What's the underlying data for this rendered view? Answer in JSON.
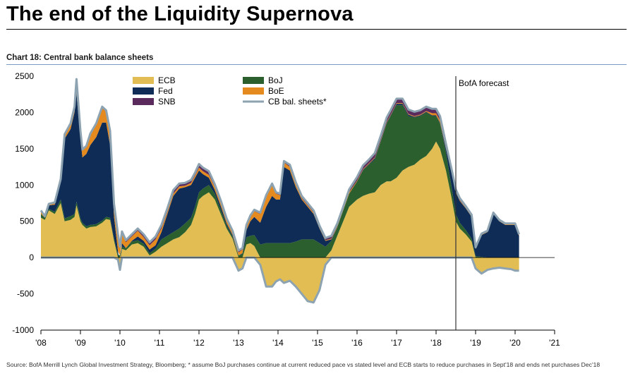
{
  "page": {
    "headline": "The end of the Liquidity Supernova",
    "subtitle": "Chart 18: Central bank balance sheets",
    "source": "Source: BofA Merrill Lynch Global Investment Strategy, Bloomberg; * assume BoJ purchases continue at current reduced pace vs stated level and ECB starts to reduce purchases in Sept'18 and ends net purchases Dec'18"
  },
  "chart_data": {
    "type": "area",
    "title": "Chart 18: Central bank balance sheets",
    "xlabel": "",
    "ylabel": "",
    "xlim": [
      2008.0,
      2021.0
    ],
    "ylim": [
      -1000,
      2500
    ],
    "y_ticks": [
      -1000,
      -500,
      0,
      500,
      1000,
      1500,
      2000,
      2500
    ],
    "x_ticks": [
      {
        "value": 2008,
        "label": "'08"
      },
      {
        "value": 2009,
        "label": "'09"
      },
      {
        "value": 2010,
        "label": "'10"
      },
      {
        "value": 2011,
        "label": "'11"
      },
      {
        "value": 2012,
        "label": "'12"
      },
      {
        "value": 2013,
        "label": "'13"
      },
      {
        "value": 2014,
        "label": "'14"
      },
      {
        "value": 2015,
        "label": "'15"
      },
      {
        "value": 2016,
        "label": "'16"
      },
      {
        "value": 2017,
        "label": "'17"
      },
      {
        "value": 2018,
        "label": "'18"
      },
      {
        "value": 2019,
        "label": "'19"
      },
      {
        "value": 2020,
        "label": "'20"
      },
      {
        "value": 2021,
        "label": "'21"
      }
    ],
    "grid": false,
    "legend_position": "top-left",
    "stacked": true,
    "x": [
      2008.0,
      2008.1,
      2008.2,
      2008.35,
      2008.5,
      2008.6,
      2008.75,
      2008.85,
      2008.9,
      2009.0,
      2009.05,
      2009.15,
      2009.25,
      2009.4,
      2009.55,
      2009.65,
      2009.75,
      2009.85,
      2009.95,
      2010.0,
      2010.05,
      2010.15,
      2010.3,
      2010.45,
      2010.6,
      2010.75,
      2010.9,
      2011.05,
      2011.2,
      2011.35,
      2011.5,
      2011.65,
      2011.8,
      2011.9,
      2012.0,
      2012.1,
      2012.25,
      2012.4,
      2012.55,
      2012.7,
      2012.85,
      2013.0,
      2013.1,
      2013.2,
      2013.3,
      2013.4,
      2013.55,
      2013.7,
      2013.85,
      2013.95,
      2014.05,
      2014.15,
      2014.3,
      2014.45,
      2014.6,
      2014.75,
      2014.9,
      2015.05,
      2015.2,
      2015.35,
      2015.5,
      2015.65,
      2015.8,
      2016.0,
      2016.15,
      2016.3,
      2016.45,
      2016.6,
      2016.75,
      2016.85,
      2017.0,
      2017.15,
      2017.3,
      2017.45,
      2017.6,
      2017.75,
      2017.9,
      2018.0,
      2018.1,
      2018.25,
      2018.4,
      2018.5,
      2018.6,
      2018.75,
      2018.9,
      2019.0,
      2019.15,
      2019.3,
      2019.45,
      2019.6,
      2019.75,
      2019.9,
      2020.0,
      2020.1
    ],
    "series": [
      {
        "name": "ECB",
        "color": "#e2bd53",
        "values": [
          550,
          520,
          650,
          600,
          750,
          500,
          520,
          560,
          720,
          500,
          450,
          400,
          420,
          430,
          480,
          530,
          520,
          230,
          -30,
          -150,
          120,
          100,
          180,
          200,
          150,
          30,
          80,
          150,
          200,
          250,
          280,
          350,
          450,
          600,
          800,
          850,
          900,
          800,
          600,
          400,
          260,
          -180,
          -150,
          180,
          200,
          160,
          -100,
          -400,
          -400,
          -330,
          -300,
          -350,
          -320,
          -400,
          -500,
          -600,
          -620,
          -450,
          -100,
          100,
          300,
          500,
          700,
          800,
          850,
          880,
          900,
          1000,
          1050,
          1050,
          1100,
          1200,
          1250,
          1280,
          1350,
          1400,
          1500,
          1600,
          1500,
          1200,
          800,
          500,
          400,
          320,
          220,
          -150,
          -220,
          -170,
          -150,
          -140,
          -150,
          -160,
          -180,
          -180
        ]
      },
      {
        "name": "BoJ",
        "color": "#2c5f2e",
        "values": [
          50,
          30,
          20,
          30,
          50,
          40,
          50,
          40,
          50,
          40,
          30,
          30,
          30,
          30,
          30,
          30,
          30,
          30,
          40,
          30,
          30,
          30,
          40,
          40,
          40,
          30,
          40,
          100,
          100,
          100,
          120,
          120,
          100,
          100,
          100,
          100,
          100,
          80,
          60,
          40,
          30,
          30,
          50,
          100,
          100,
          150,
          180,
          200,
          200,
          200,
          200,
          200,
          200,
          220,
          250,
          250,
          250,
          200,
          150,
          130,
          120,
          150,
          180,
          250,
          350,
          400,
          450,
          600,
          800,
          900,
          1000,
          900,
          700,
          650,
          600,
          600,
          450,
          350,
          350,
          250,
          150,
          100,
          80,
          60,
          40,
          20,
          10,
          0,
          0,
          0,
          0,
          0,
          0,
          0
        ]
      },
      {
        "name": "Fed",
        "color": "#0e2c56",
        "values": [
          0,
          0,
          50,
          100,
          250,
          1100,
          1200,
          1400,
          1500,
          1100,
          900,
          1000,
          1100,
          1200,
          1350,
          1300,
          1000,
          300,
          50,
          -20,
          50,
          0,
          10,
          50,
          40,
          50,
          50,
          100,
          300,
          500,
          550,
          500,
          450,
          400,
          300,
          200,
          100,
          50,
          50,
          30,
          20,
          0,
          10,
          100,
          200,
          250,
          300,
          500,
          650,
          600,
          600,
          1050,
          1000,
          750,
          550,
          450,
          350,
          200,
          80,
          20,
          0,
          0,
          0,
          0,
          10,
          10,
          20,
          10,
          10,
          10,
          20,
          20,
          20,
          10,
          10,
          10,
          10,
          10,
          10,
          50,
          200,
          300,
          300,
          300,
          300,
          100,
          300,
          350,
          600,
          500,
          450,
          450,
          450,
          300
        ]
      },
      {
        "name": "BoE",
        "color": "#e58a1f",
        "values": [
          50,
          20,
          20,
          20,
          20,
          50,
          70,
          70,
          180,
          100,
          100,
          100,
          150,
          180,
          200,
          150,
          180,
          150,
          200,
          100,
          130,
          80,
          60,
          80,
          50,
          60,
          80,
          50,
          30,
          30,
          30,
          20,
          30,
          30,
          40,
          40,
          40,
          40,
          40,
          40,
          40,
          40,
          50,
          50,
          60,
          80,
          120,
          140,
          150,
          80,
          60,
          60,
          50,
          40,
          20,
          20,
          20,
          10,
          10,
          10,
          10,
          10,
          20,
          10,
          10,
          10,
          10,
          10,
          10,
          10,
          10,
          10,
          10,
          10,
          10,
          10,
          30,
          30,
          30,
          20,
          20,
          10,
          10,
          10,
          10,
          10,
          10,
          10,
          10,
          10,
          10,
          10,
          10,
          10
        ]
      },
      {
        "name": "SNB",
        "color": "#5a2a5c",
        "values": [
          0,
          0,
          0,
          10,
          10,
          10,
          10,
          10,
          10,
          10,
          10,
          10,
          10,
          10,
          20,
          20,
          20,
          30,
          30,
          20,
          30,
          30,
          30,
          30,
          40,
          40,
          40,
          50,
          50,
          50,
          40,
          40,
          40,
          40,
          50,
          50,
          50,
          40,
          40,
          30,
          20,
          30,
          20,
          20,
          20,
          20,
          20,
          20,
          20,
          20,
          20,
          20,
          30,
          30,
          30,
          30,
          30,
          30,
          30,
          40,
          40,
          40,
          40,
          50,
          50,
          50,
          60,
          60,
          60,
          60,
          60,
          60,
          60,
          60,
          60,
          60,
          60,
          60,
          60,
          50,
          30,
          30,
          30,
          20,
          20,
          10,
          10,
          10,
          10,
          10,
          10,
          10,
          10,
          10
        ]
      }
    ],
    "line_series": {
      "name": "CB bal. sheets*",
      "color": "#8da3b1"
    },
    "annotations": [
      {
        "label": "BofA forecast",
        "x": 2018.5
      }
    ]
  }
}
